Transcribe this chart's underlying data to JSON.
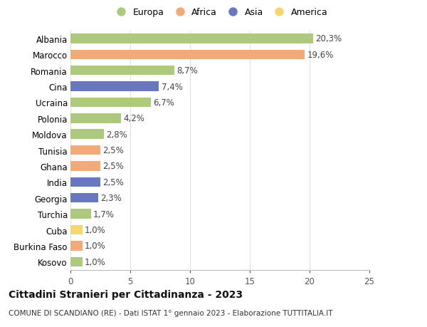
{
  "countries": [
    "Albania",
    "Marocco",
    "Romania",
    "Cina",
    "Ucraina",
    "Polonia",
    "Moldova",
    "Tunisia",
    "Ghana",
    "India",
    "Georgia",
    "Turchia",
    "Cuba",
    "Burkina Faso",
    "Kosovo"
  ],
  "values": [
    20.3,
    19.6,
    8.7,
    7.4,
    6.7,
    4.2,
    2.8,
    2.5,
    2.5,
    2.5,
    2.3,
    1.7,
    1.0,
    1.0,
    1.0
  ],
  "labels": [
    "20,3%",
    "19,6%",
    "8,7%",
    "7,4%",
    "6,7%",
    "4,2%",
    "2,8%",
    "2,5%",
    "2,5%",
    "2,5%",
    "2,3%",
    "1,7%",
    "1,0%",
    "1,0%",
    "1,0%"
  ],
  "regions": [
    "Europa",
    "Africa",
    "Europa",
    "Asia",
    "Europa",
    "Europa",
    "Europa",
    "Africa",
    "Africa",
    "Asia",
    "Asia",
    "Europa",
    "America",
    "Africa",
    "Europa"
  ],
  "colors": {
    "Europa": "#adc97e",
    "Africa": "#f2ab78",
    "Asia": "#6878c0",
    "America": "#f5d76e"
  },
  "legend_order": [
    "Europa",
    "Africa",
    "Asia",
    "America"
  ],
  "title": "Cittadini Stranieri per Cittadinanza - 2023",
  "subtitle": "COMUNE DI SCANDIANO (RE) - Dati ISTAT 1° gennaio 2023 - Elaborazione TUTTITALIA.IT",
  "xlim": [
    0,
    25
  ],
  "xticks": [
    0,
    5,
    10,
    15,
    20,
    25
  ],
  "bg_color": "#ffffff",
  "grid_color": "#e0e0e0",
  "bar_height": 0.6,
  "label_fontsize": 8.5,
  "title_fontsize": 10,
  "subtitle_fontsize": 7.5,
  "tick_fontsize": 8.5,
  "legend_fontsize": 9,
  "marker_size": 10
}
